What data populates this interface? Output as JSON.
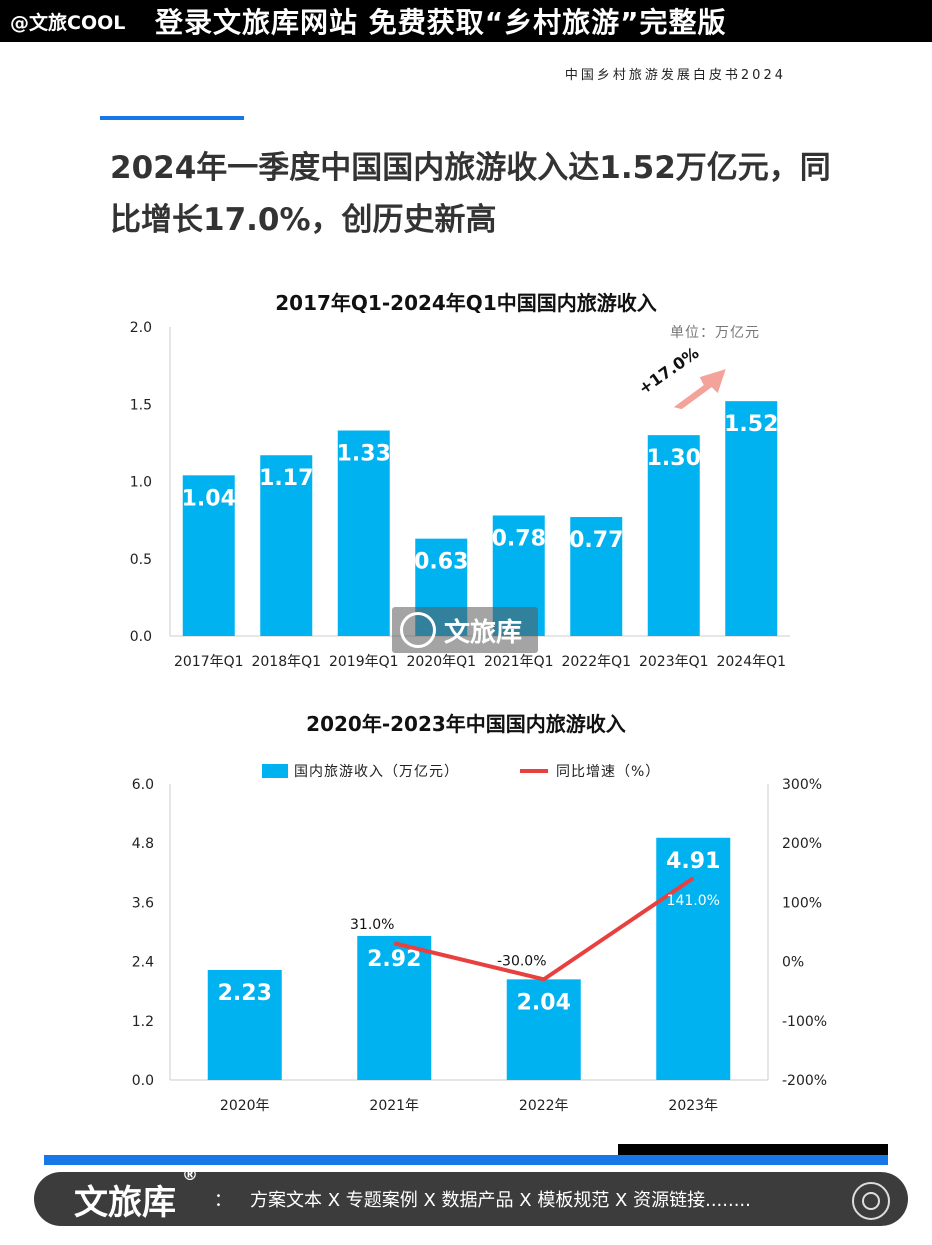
{
  "header": {
    "handle": "@文旅COOL",
    "promo": "登录文旅库网站 免费获取“乡村旅游”完整版",
    "doc_subtitle": "中国乡村旅游发展白皮书2024",
    "headline_line1": "2024年一季度中国国内旅游收入达1.52万亿元，同",
    "headline_line2": "比增长17.0%，创历史新高"
  },
  "watermark": {
    "text": "文旅库",
    "icon": "wenlvku-logo-icon"
  },
  "chart_data": [
    {
      "type": "bar",
      "title": "2017年Q1-2024年Q1中国国内旅游收入",
      "unit_note": "单位：万亿元",
      "categories": [
        "2017年Q1",
        "2018年Q1",
        "2019年Q1",
        "2020年Q1",
        "2021年Q1",
        "2022年Q1",
        "2023年Q1",
        "2024年Q1"
      ],
      "values": [
        1.04,
        1.17,
        1.33,
        0.63,
        0.78,
        0.77,
        1.3,
        1.52
      ],
      "value_labels": [
        "1.04",
        "1.17",
        "1.33",
        "0.63",
        "0.78",
        "0.77",
        "1.30",
        "1.52"
      ],
      "yticks": [
        "0.0",
        "0.5",
        "1.0",
        "1.5",
        "2.0"
      ],
      "ylim": [
        0,
        2.0
      ],
      "annotation": "+17.0%",
      "bar_color": "#00b2f0"
    },
    {
      "type": "bar+line",
      "title": "2020年-2023年中国国内旅游收入",
      "categories": [
        "2020年",
        "2021年",
        "2022年",
        "2023年"
      ],
      "series": [
        {
          "name": "国内旅游收入（万亿元）",
          "values": [
            2.23,
            2.92,
            2.04,
            4.91
          ],
          "value_labels": [
            "2.23",
            "2.92",
            "2.04",
            "4.91"
          ],
          "color": "#00b2f0"
        },
        {
          "name": "同比增速（%）",
          "values": [
            null,
            31.0,
            -30.0,
            141.0
          ],
          "value_labels": [
            "",
            "31.0%",
            "-30.0%",
            "141.0%"
          ],
          "color": "#e8403f"
        }
      ],
      "ylim_left": [
        0,
        6.0
      ],
      "yticks_left": [
        "0.0",
        "1.2",
        "2.4",
        "3.6",
        "4.8",
        "6.0"
      ],
      "ylim_right": [
        -200,
        300
      ],
      "yticks_right": [
        "-200%",
        "-100%",
        "0%",
        "100%",
        "200%",
        "300%"
      ]
    }
  ],
  "footer": {
    "brand": "文旅库",
    "reg": "®",
    "colon": "：",
    "tags": "方案文本 X 专题案例 X 数据产品 X 模板规范 X 资源链接........",
    "logo_icon": "wenlvku-logo-icon"
  }
}
